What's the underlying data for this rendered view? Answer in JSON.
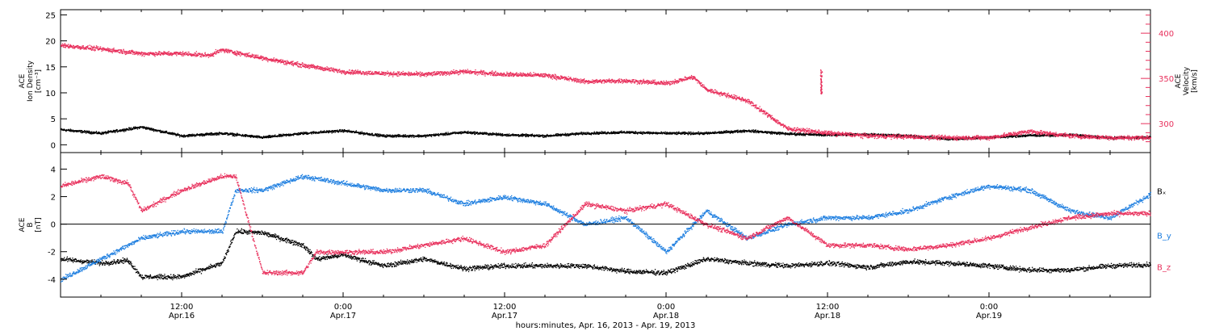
{
  "colors": {
    "black": "#000000",
    "pink": "#e8305c",
    "blue": "#1f7fe0"
  },
  "chart_data": [
    {
      "type": "scatter",
      "panel": "top",
      "left_axis": {
        "label_lines": [
          "ACE",
          "Ion Density",
          "[cm⁻³]"
        ],
        "ylim": [
          -1.5,
          26
        ],
        "ticks": [
          0,
          5,
          10,
          15,
          20,
          25
        ]
      },
      "right_axis": {
        "label_lines": [
          "ACE",
          "Velocity",
          "[km/s]"
        ],
        "ylim": [
          268,
          426
        ],
        "ticks": [
          300,
          350,
          400
        ],
        "color": "#e8305c"
      },
      "series": [
        {
          "key": "density",
          "color": "#000000",
          "axis": "left",
          "x": [
            0,
            3,
            6,
            9,
            12,
            15,
            18,
            21,
            24,
            27,
            30,
            33,
            36,
            39,
            42,
            45,
            48,
            51,
            54,
            57,
            60,
            63,
            66,
            69,
            72,
            75,
            78,
            81
          ],
          "y": [
            3.0,
            2.3,
            3.5,
            1.8,
            2.3,
            1.5,
            2.3,
            2.8,
            1.8,
            1.8,
            2.5,
            2.0,
            1.8,
            2.3,
            2.5,
            2.3,
            2.3,
            2.8,
            2.2,
            2.0,
            2.1,
            1.8,
            1.2,
            1.5,
            1.9,
            2.0,
            1.4,
            1.5
          ]
        },
        {
          "key": "velocity",
          "color": "#e8305c",
          "axis": "right",
          "x": [
            0,
            3,
            6,
            9,
            11,
            12,
            15,
            18,
            21,
            24,
            27,
            30,
            33,
            36,
            39,
            42,
            45,
            47,
            48,
            51,
            54,
            57,
            60,
            63,
            66,
            69,
            72,
            75,
            78,
            81
          ],
          "y": [
            387,
            383,
            378,
            378,
            376,
            382,
            373,
            365,
            358,
            356,
            355,
            358,
            355,
            354,
            347,
            348,
            345,
            352,
            338,
            326,
            295,
            290,
            287,
            286,
            285,
            285,
            292,
            287,
            285,
            285
          ]
        }
      ],
      "annotations": [
        {
          "series": "velocity",
          "x": 56.5,
          "y_range": [
            333,
            360
          ]
        }
      ]
    },
    {
      "type": "scatter",
      "panel": "bottom",
      "left_axis": {
        "label_lines": [
          "ACE",
          "B",
          "[nT]"
        ],
        "ylim": [
          -5.3,
          5.2
        ],
        "ticks": [
          -4,
          -2,
          0,
          2,
          4
        ]
      },
      "zero_line": true,
      "series": [
        {
          "name": "Bₓ",
          "key": "bx",
          "color": "#000000",
          "x": [
            0,
            3,
            5,
            6,
            9,
            12,
            13,
            15,
            18,
            19,
            21,
            24,
            27,
            30,
            33,
            36,
            39,
            42,
            45,
            48,
            51,
            54,
            57,
            60,
            63,
            66,
            69,
            72,
            75,
            78,
            81
          ],
          "y": [
            -2.5,
            -2.8,
            -2.6,
            -3.8,
            -3.8,
            -2.8,
            -0.5,
            -0.6,
            -1.5,
            -2.5,
            -2.2,
            -3.0,
            -2.5,
            -3.2,
            -3.0,
            -3.0,
            -3.0,
            -3.4,
            -3.5,
            -2.5,
            -2.8,
            -3.0,
            -2.8,
            -3.1,
            -2.7,
            -2.8,
            -3.0,
            -3.3,
            -3.3,
            -3.0,
            -2.9
          ]
        },
        {
          "name": "B_y",
          "key": "by",
          "color": "#1f7fe0",
          "x": [
            0,
            3,
            6,
            9,
            12,
            13,
            15,
            18,
            21,
            24,
            27,
            30,
            33,
            36,
            39,
            42,
            45,
            48,
            51,
            54,
            57,
            60,
            63,
            66,
            69,
            72,
            75,
            78,
            81
          ],
          "y": [
            -4.0,
            -2.5,
            -1.0,
            -0.5,
            -0.5,
            2.5,
            2.5,
            3.5,
            3.0,
            2.5,
            2.5,
            1.5,
            2.0,
            1.5,
            0.0,
            0.5,
            -2.0,
            1.0,
            -1.0,
            0.0,
            0.5,
            0.5,
            1.0,
            2.0,
            2.8,
            2.5,
            1.0,
            0.5,
            2.2
          ]
        },
        {
          "name": "B_z",
          "key": "bz",
          "color": "#e8305c",
          "x": [
            0,
            3,
            5,
            6,
            9,
            12,
            13,
            15,
            18,
            19,
            21,
            24,
            27,
            30,
            33,
            36,
            39,
            42,
            45,
            48,
            51,
            54,
            57,
            60,
            63,
            66,
            69,
            72,
            75,
            78,
            81
          ],
          "y": [
            2.8,
            3.5,
            3.0,
            1.0,
            2.5,
            3.5,
            3.5,
            -3.5,
            -3.5,
            -2.0,
            -2.0,
            -2.0,
            -1.5,
            -1.0,
            -2.0,
            -1.5,
            1.5,
            1.0,
            1.5,
            0.0,
            -1.0,
            0.5,
            -1.5,
            -1.5,
            -1.8,
            -1.5,
            -1.0,
            -0.2,
            0.5,
            0.8,
            0.8
          ]
        }
      ]
    }
  ],
  "x_axis": {
    "range": [
      0,
      81
    ],
    "ticks": [
      {
        "x": 9,
        "label1": "12:00",
        "label2": "Apr.16"
      },
      {
        "x": 21,
        "label1": "0:00",
        "label2": "Apr.17"
      },
      {
        "x": 33,
        "label1": "12:00",
        "label2": "Apr.17"
      },
      {
        "x": 45,
        "label1": "0:00",
        "label2": "Apr.18"
      },
      {
        "x": 57,
        "label1": "12:00",
        "label2": "Apr.18"
      },
      {
        "x": 69,
        "label1": "0:00",
        "label2": "Apr.19"
      }
    ],
    "title": "hours:minutes, Apr. 16, 2013 - Apr. 19, 2013"
  }
}
